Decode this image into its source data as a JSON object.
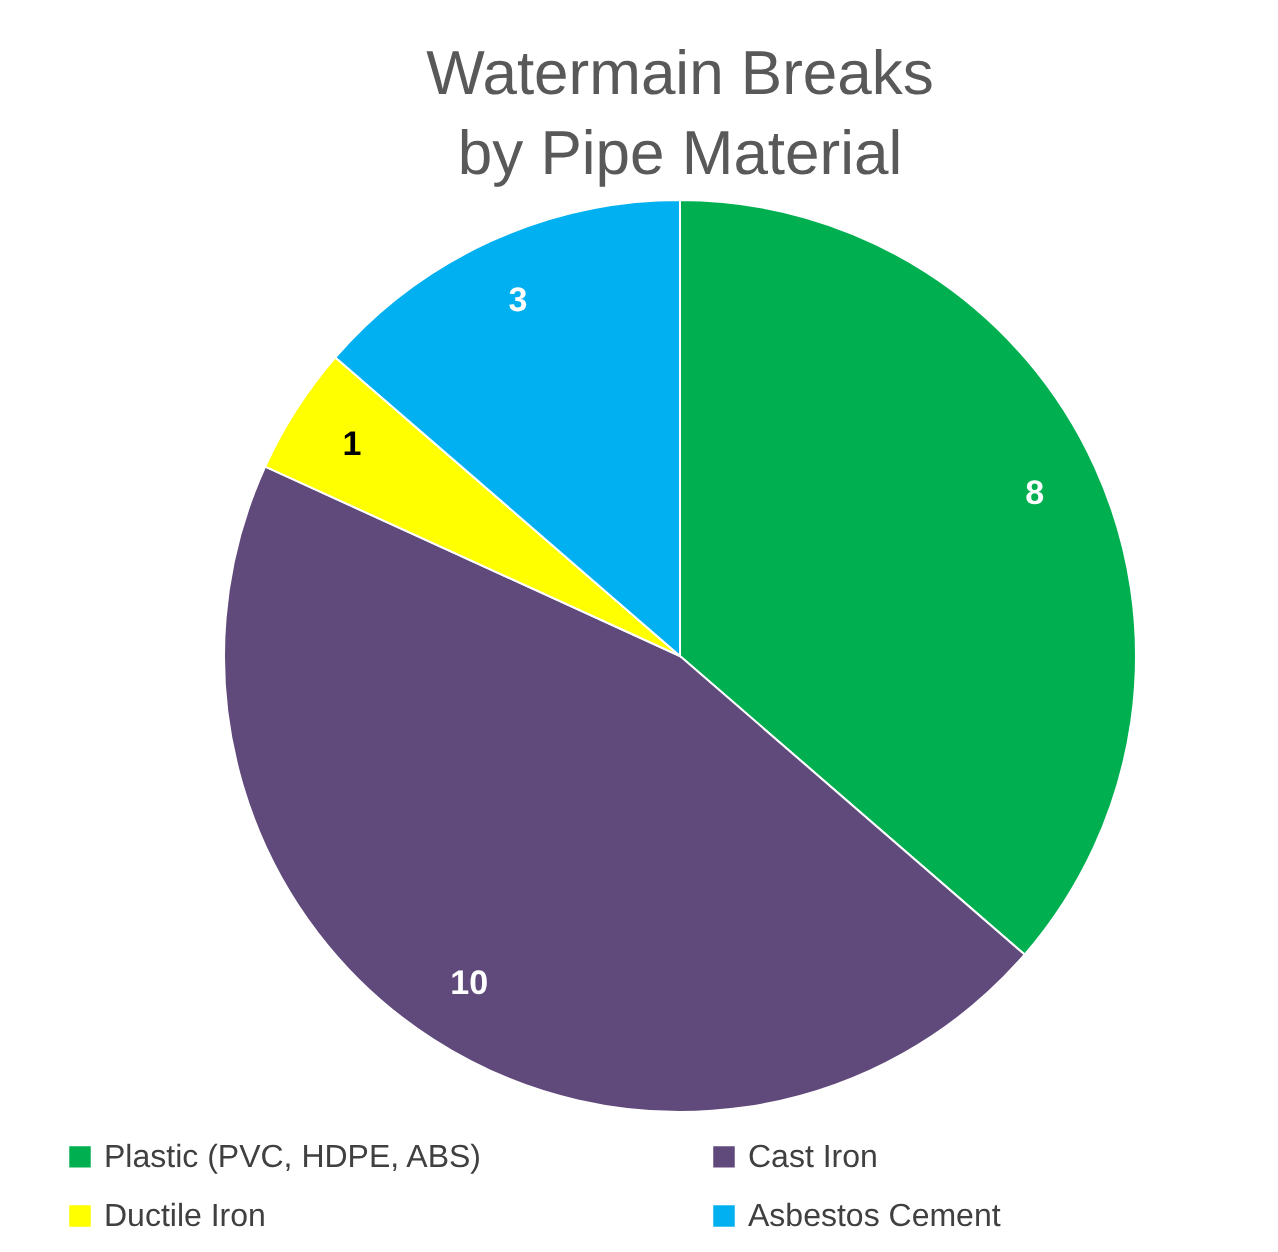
{
  "chart_data": {
    "type": "pie",
    "title": "Watermain Breaks\nby Pipe Material",
    "categories": [
      "Plastic (PVC, HDPE, ABS)",
      "Cast Iron",
      "Ductile Iron",
      "Asbestos Cement"
    ],
    "values": [
      8,
      10,
      1,
      3
    ],
    "colors": [
      "#00b050",
      "#604a7b",
      "#ffff00",
      "#00b0f0"
    ],
    "data_labels": true,
    "legend": "bottom"
  }
}
